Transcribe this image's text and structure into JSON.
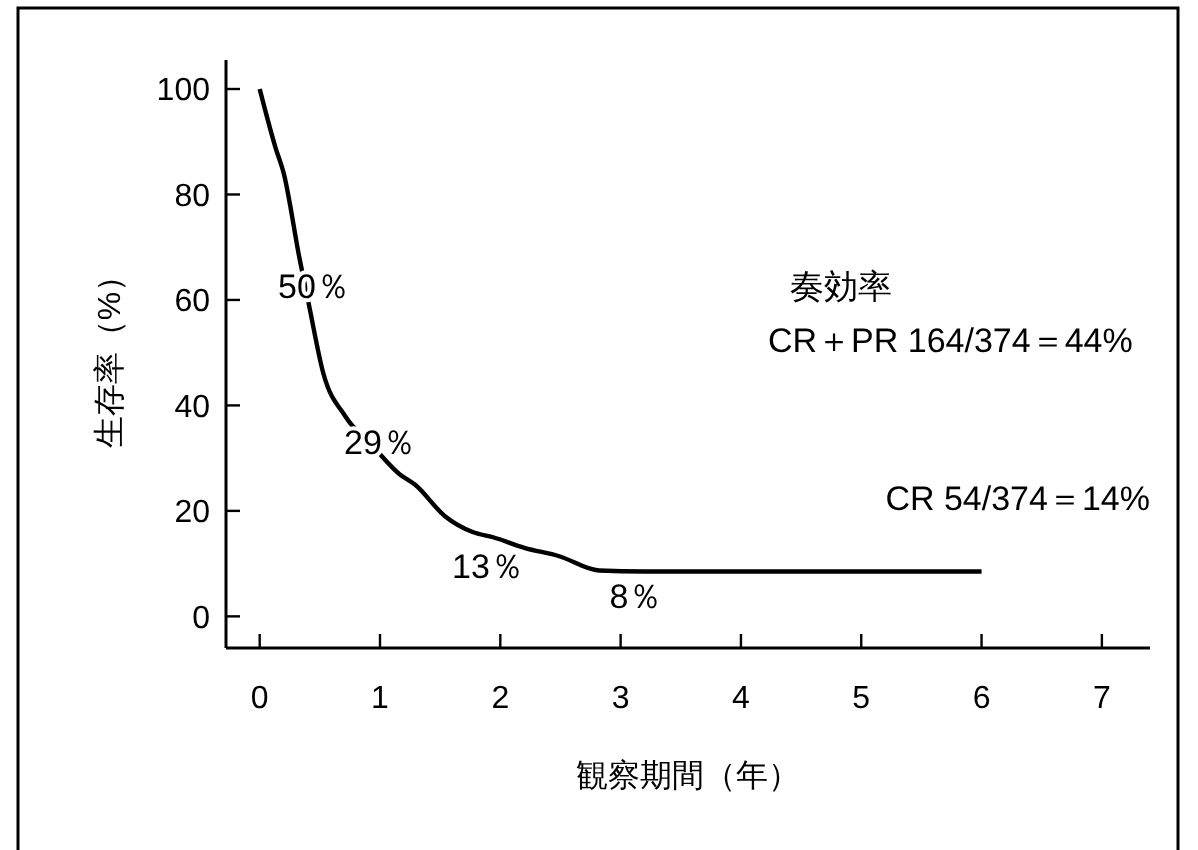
{
  "chart_data": {
    "type": "line",
    "xlabel": "観察期間（年）",
    "ylabel": "生存率（%）",
    "xlim": [
      -0.28,
      7.4
    ],
    "ylim": [
      -6,
      105.5
    ],
    "xticks": [
      0,
      1,
      2,
      3,
      4,
      5,
      6,
      7
    ],
    "yticks": [
      0,
      20,
      40,
      60,
      80,
      100
    ],
    "grid": false,
    "marker": "none",
    "line_style": "solid",
    "series": [
      {
        "color": "#000000",
        "x": [
          0,
          0.13,
          0.2,
          0.33,
          0.41,
          0.53,
          0.71,
          0.95,
          1.16,
          1.29,
          1.54,
          1.77,
          1.94,
          2.2,
          2.49,
          2.82,
          3.2,
          4,
          5,
          6
        ],
        "values": [
          100,
          89,
          84,
          68,
          59,
          46,
          38,
          32,
          27,
          25,
          19,
          16,
          15,
          13,
          11.4,
          8.7,
          8.5,
          8.5,
          8.5,
          8.5
        ]
      }
    ],
    "annotations": [
      "50％",
      "29％",
      "13％",
      "8％",
      "奏効率",
      "CR＋PR 164/374＝44%",
      "CR  54/374＝14%"
    ]
  }
}
